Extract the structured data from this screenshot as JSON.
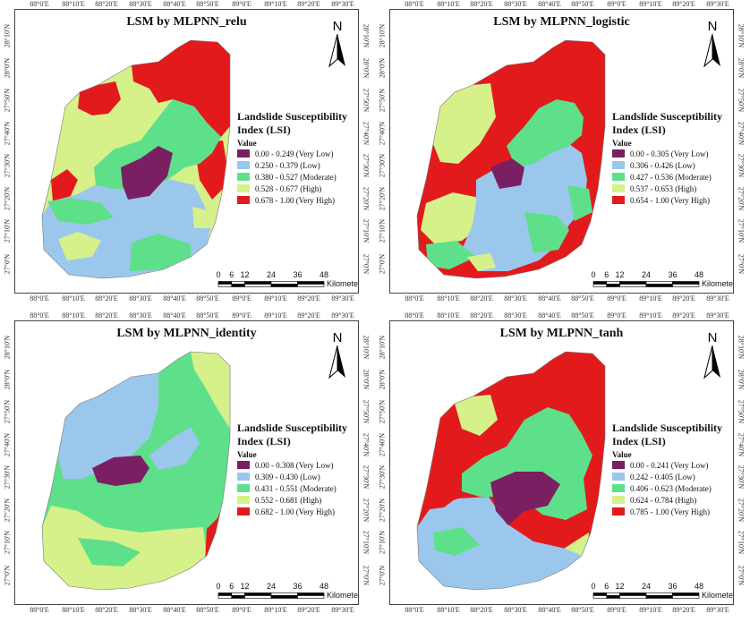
{
  "axes": {
    "x_ticks": [
      "88°0'E",
      "88°10'E",
      "88°20'E",
      "88°30'E",
      "88°40'E",
      "88°50'E",
      "89°0'E",
      "89°10'E",
      "89°20'E",
      "89°30'E"
    ],
    "y_ticks": [
      "28°10'N",
      "28°0'N",
      "27°50'N",
      "27°40'N",
      "27°30'N",
      "27°20'N",
      "27°10'N",
      "27°0'N"
    ]
  },
  "colors": {
    "very_low": "#7b1f63",
    "low": "#9cc7ec",
    "moderate": "#5ee08a",
    "high": "#d6f08a",
    "very_high": "#e31a1c"
  },
  "north_label": "N",
  "legend_heading": "Landslide Susceptibility Index (LSI)",
  "legend_value_label": "Value",
  "scale": {
    "numbers": [
      "0",
      "6",
      "12",
      "24",
      "36",
      "48"
    ],
    "unit": "Kilometers"
  },
  "panels": [
    {
      "title": "LSM by MLPNN_relu",
      "classes": [
        "0.00 - 0.249 (Very Low)",
        "0.250 - 0.379 (Low)",
        "0.380 - 0.527 (Moderate)",
        "0.528 - 0.677 (High)",
        "0.678 - 1.00 (Very High)"
      ]
    },
    {
      "title": "LSM by MLPNN_logistic",
      "classes": [
        "0.00 - 0.305 (Very Low)",
        "0.306 - 0.426 (Low)",
        "0.427 - 0.536 (Moderate)",
        "0.537 - 0.653 (High)",
        "0.654 - 1.00 (Very High)"
      ]
    },
    {
      "title": "LSM by MLPNN_identity",
      "classes": [
        "0.00 - 0.308 (Very Low)",
        "0.309 - 0.430 (Low)",
        "0.431 - 0.551 (Moderate)",
        "0.552 - 0.681 (High)",
        "0.682 - 1.00 (Very High)"
      ]
    },
    {
      "title": "LSM by MLPNN_tanh",
      "classes": [
        "0.00 - 0.241 (Very Low)",
        "0.242 - 0.405 (Low)",
        "0.406 - 0.623 (Moderate)",
        "0.624 - 0.784 (High)",
        "0.785 - 1.00 (Very High)"
      ]
    }
  ]
}
